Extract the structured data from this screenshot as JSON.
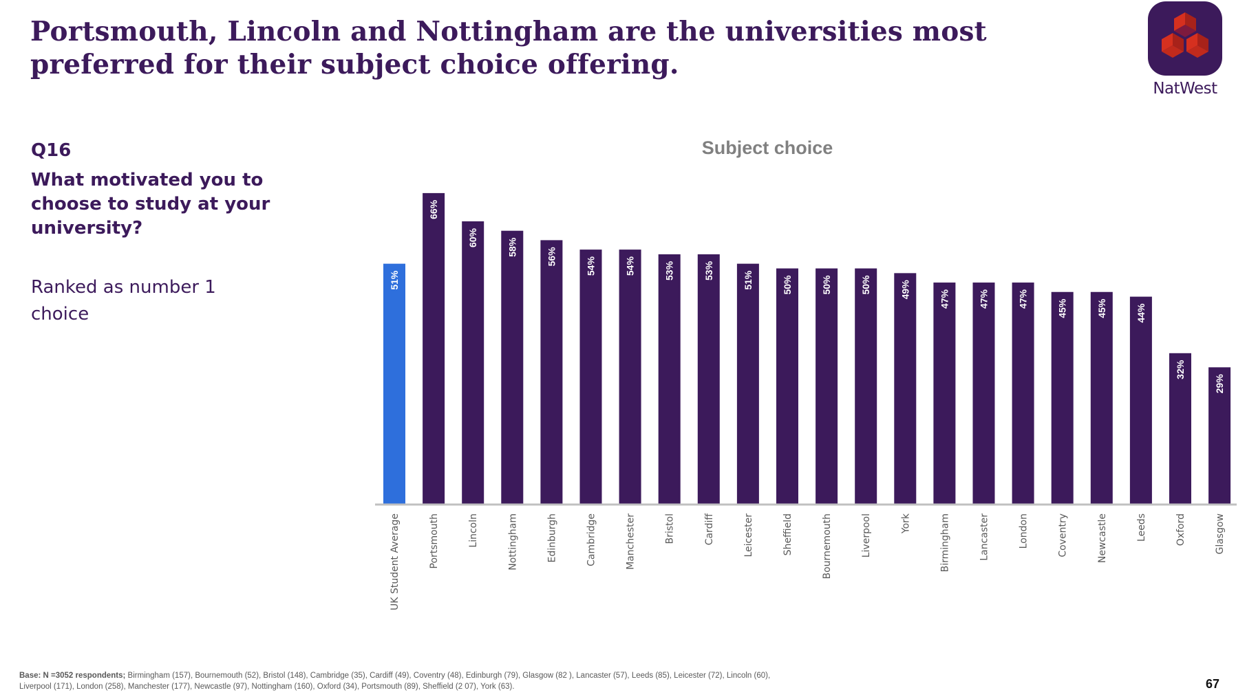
{
  "slide": {
    "headline": "Portsmouth, Lincoln and Nottingham are the universities most preferred for their subject choice offering.",
    "brand": {
      "name": "NatWest",
      "logo_icon": "natwest-cubes-icon",
      "colors": {
        "logo_bg": "#3c1a5b",
        "cube_red": "#d6301f",
        "cube_dark": "#a8221a"
      }
    },
    "question": {
      "number": "Q16",
      "text": "What motivated you to choose to study at your university?",
      "subtext": "Ranked as number 1 choice"
    },
    "footnote": {
      "base_bold": "Base: N =3052 respondents;",
      "base_rest": " Birmingham (157),  Bournemouth (52), Bristol (148), Cambridge (35), Cardiff (49), Coventry (48),  Edinburgh (79), Glasgow (82 ), Lancaster (57), Leeds (85), Leicester (72), Lincoln (60),",
      "line2": "Liverpool (171), London (258), Manchester (177), Newcastle (97), Nottingham (160), Oxford (34), Portsmouth (89), Sheffield (2 07), York (63)."
    },
    "page_number": "67"
  },
  "chart_data": {
    "type": "bar",
    "title": "Subject choice",
    "xlabel": "",
    "ylabel": "",
    "ylim": [
      0,
      100
    ],
    "grid": false,
    "value_format": "percent",
    "categories": [
      "UK Student Average",
      "Portsmouth",
      "Lincoln",
      "Nottingham",
      "Edinburgh",
      "Cambridge",
      "Manchester",
      "Bristol",
      "Cardiff",
      "Leicester",
      "Sheffield",
      "Bournemouth",
      "Liverpool",
      "York",
      "Birmingham",
      "Lancaster",
      "London",
      "Coventry",
      "Newcastle",
      "Leeds",
      "Oxford",
      "Glasgow"
    ],
    "values": [
      51,
      66,
      60,
      58,
      56,
      54,
      54,
      53,
      53,
      51,
      50,
      50,
      50,
      49,
      47,
      47,
      47,
      45,
      45,
      44,
      32,
      29
    ],
    "data_labels": [
      "51%",
      "66%",
      "60%",
      "58%",
      "56%",
      "54%",
      "54%",
      "53%",
      "53%",
      "51%",
      "50%",
      "50%",
      "50%",
      "49%",
      "47%",
      "47%",
      "47%",
      "45%",
      "45%",
      "44%",
      "32%",
      "29%"
    ],
    "colors": {
      "average": "#2e6fdc",
      "university": "#3c1a5b",
      "axis": "#c0c0c0",
      "label": "#595959"
    },
    "highlight_index": 0
  }
}
